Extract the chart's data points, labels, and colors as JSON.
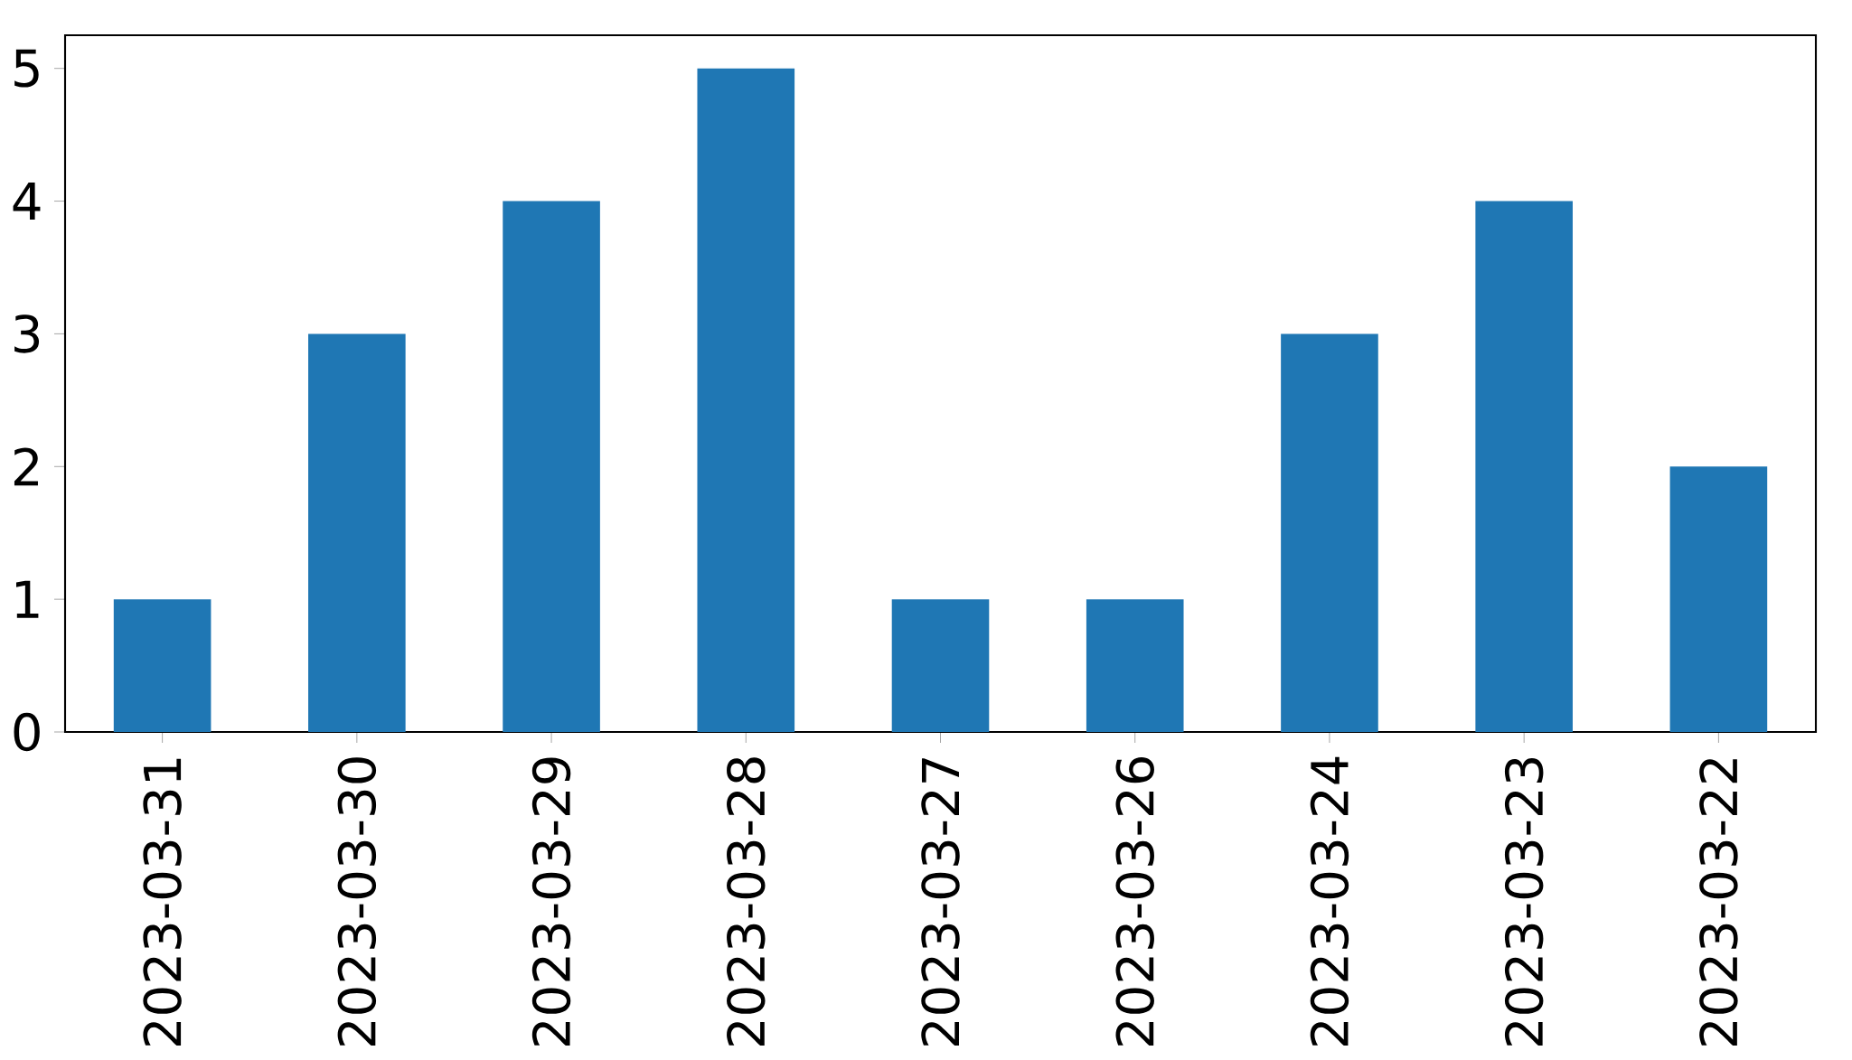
{
  "chart_data": {
    "type": "bar",
    "categories": [
      "2023-03-31",
      "2023-03-30",
      "2023-03-29",
      "2023-03-28",
      "2023-03-27",
      "2023-03-26",
      "2023-03-24",
      "2023-03-23",
      "2023-03-22"
    ],
    "values": [
      1,
      3,
      4,
      5,
      1,
      1,
      3,
      4,
      2
    ],
    "color": "#1f77b4",
    "ylim": [
      0,
      5.25
    ],
    "yticks": [
      0,
      1,
      2,
      3,
      4,
      5
    ]
  }
}
